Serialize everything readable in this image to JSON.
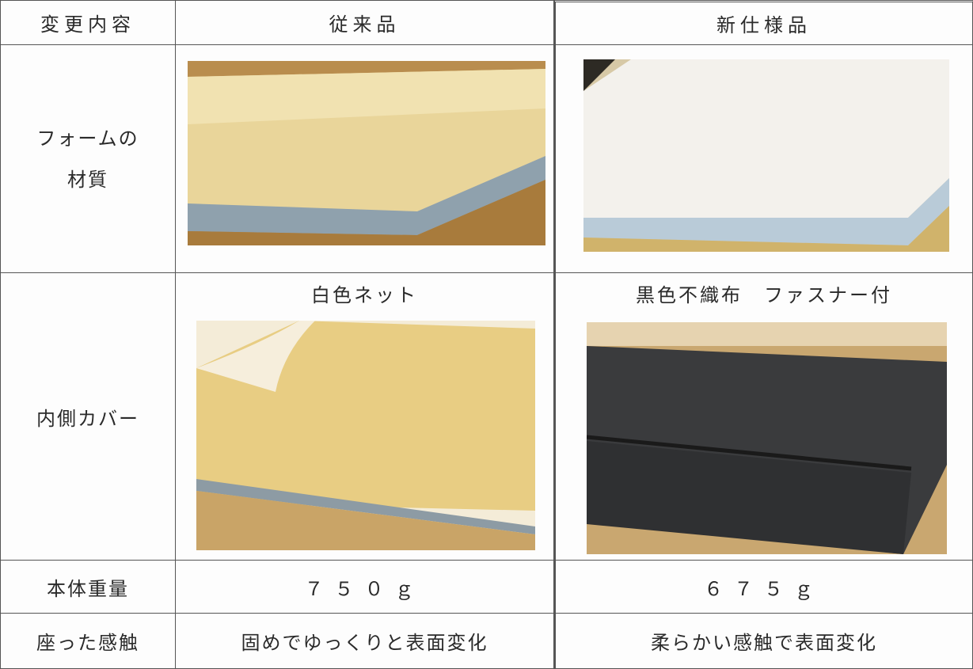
{
  "table": {
    "header": [
      "変更内容",
      "従来品",
      "新仕様品"
    ],
    "rows": [
      {
        "label": [
          "フォームの",
          "材質"
        ]
      },
      {
        "label": "内側カバー",
        "cells": [
          "白色ネット",
          "黒色不織布　ファスナー付"
        ]
      },
      {
        "label": "本体重量",
        "cells": [
          "７５０ｇ",
          "６７５ｇ"
        ]
      },
      {
        "label": "座った感触",
        "cells": [
          "固めでゆっくりと表面変化",
          "柔らかい感触で表面変化"
        ]
      }
    ]
  }
}
